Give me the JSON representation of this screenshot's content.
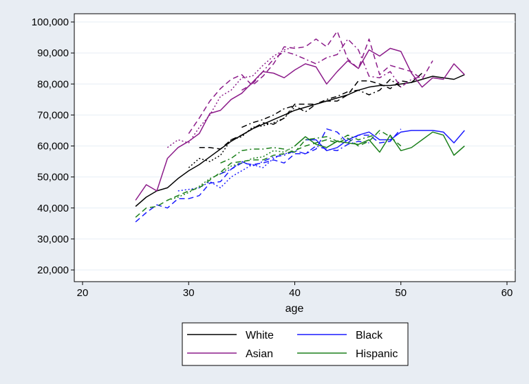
{
  "chart_data": {
    "type": "line",
    "xlabel": "age",
    "ylabel": "",
    "xlim": [
      18,
      61
    ],
    "ylim": [
      18000,
      102000
    ],
    "x_ticks": [
      20,
      30,
      40,
      50,
      60
    ],
    "y_ticks": [
      20000,
      30000,
      40000,
      50000,
      60000,
      70000,
      80000,
      90000,
      100000
    ],
    "y_tick_labels": [
      "20,000",
      "30,000",
      "40,000",
      "50,000",
      "60,000",
      "70,000",
      "80,000",
      "90,000",
      "100,000"
    ],
    "x_tick_labels": [
      "20",
      "30",
      "40",
      "50",
      "60"
    ],
    "grid": "horizontal",
    "legend_position": "bottom",
    "legend": [
      {
        "label": "White",
        "color": "#000000"
      },
      {
        "label": "Black",
        "color": "#1a1aff"
      },
      {
        "label": "Asian",
        "color": "#8b1a89"
      },
      {
        "label": "Hispanic",
        "color": "#1a7f1a"
      }
    ],
    "series": [
      {
        "group": "White",
        "color": "#000000",
        "dash": "solid",
        "x": [
          25,
          26,
          27,
          28,
          29,
          30,
          31,
          32,
          33,
          34,
          35,
          36,
          37,
          38,
          39,
          40,
          41,
          42,
          43,
          44,
          45,
          46,
          47,
          48,
          49,
          50,
          51,
          52,
          53,
          54,
          55,
          56
        ],
        "y": [
          40500,
          43500,
          45500,
          46500,
          49500,
          52000,
          54000,
          56500,
          59000,
          61500,
          63500,
          65500,
          67000,
          68500,
          70000,
          71500,
          72500,
          73500,
          74500,
          75500,
          76500,
          78000,
          79000,
          79500,
          79500,
          80000,
          80500,
          81500,
          82500,
          82000,
          81500,
          83000
        ]
      },
      {
        "group": "White",
        "color": "#000000",
        "dash": "dash",
        "x": [
          31,
          32,
          33,
          34,
          35,
          36,
          37,
          38,
          39,
          40,
          41,
          42,
          43,
          44,
          45,
          46,
          47,
          48,
          49,
          50,
          51,
          52
        ],
        "y": [
          59500,
          59500,
          59000,
          62000,
          63500,
          65500,
          67500,
          67000,
          69000,
          73500,
          73500,
          73500,
          74500,
          74500,
          76500,
          81000,
          81000,
          80000,
          78500,
          81000,
          80500,
          83500
        ]
      },
      {
        "group": "White",
        "color": "#000000",
        "dash": "dashdot",
        "x": [
          35,
          36,
          37,
          38,
          39,
          40,
          41,
          42,
          43,
          44,
          45,
          46,
          47,
          48,
          49,
          50
        ],
        "y": [
          66000,
          67500,
          68500,
          70000,
          72000,
          73000,
          71000,
          73500,
          75000,
          76000,
          77500,
          78000,
          76500,
          78000,
          81500,
          79000
        ]
      },
      {
        "group": "White",
        "color": "#000000",
        "dash": "dot",
        "x": [
          30,
          31,
          32,
          33,
          34,
          35,
          36,
          37,
          38,
          39,
          40
        ],
        "y": [
          53000,
          56000,
          55000,
          57000,
          62000,
          63000,
          66000,
          66500,
          67500,
          69000,
          72500
        ]
      },
      {
        "group": "Asian",
        "color": "#8b1a89",
        "dash": "solid",
        "x": [
          25,
          26,
          27,
          28,
          29,
          30,
          31,
          32,
          33,
          34,
          35,
          36,
          37,
          38,
          39,
          40,
          41,
          42,
          43,
          44,
          45,
          46,
          47,
          48,
          49,
          50,
          51,
          52,
          53,
          54,
          55,
          56
        ],
        "y": [
          42500,
          47500,
          45500,
          56000,
          59500,
          61500,
          64000,
          70500,
          71500,
          75000,
          77000,
          80500,
          84000,
          83500,
          82000,
          84500,
          86500,
          85500,
          80000,
          84000,
          87500,
          85000,
          91000,
          89000,
          91500,
          90500,
          83500,
          79000,
          82000,
          81500,
          86500,
          83000
        ]
      },
      {
        "group": "Asian",
        "color": "#8b1a89",
        "dash": "dash",
        "x": [
          30,
          31,
          32,
          33,
          34,
          35,
          36,
          37,
          38,
          39,
          40,
          41,
          42,
          43,
          44,
          45,
          46,
          47,
          48,
          49,
          50,
          51,
          52,
          53
        ],
        "y": [
          64000,
          69000,
          74500,
          78500,
          81500,
          83000,
          79500,
          82500,
          86500,
          92000,
          91500,
          92000,
          94500,
          92000,
          97000,
          88000,
          85000,
          94500,
          83000,
          86000,
          85000,
          84000,
          81500,
          87500
        ]
      },
      {
        "group": "Asian",
        "color": "#8b1a89",
        "dash": "dashdot",
        "x": [
          35,
          36,
          37,
          38,
          39,
          40,
          41,
          42,
          43,
          44,
          45,
          46,
          47,
          48,
          49,
          50,
          51,
          52
        ],
        "y": [
          78000,
          80000,
          84000,
          88000,
          90500,
          89500,
          88000,
          86500,
          88500,
          89500,
          94500,
          91000,
          82500,
          82000,
          84000,
          79000,
          81500,
          82500
        ]
      },
      {
        "group": "Asian",
        "color": "#8b1a89",
        "dash": "dot",
        "x": [
          28,
          29,
          30,
          31,
          32,
          33,
          34,
          35,
          36,
          37,
          38,
          39,
          40
        ],
        "y": [
          59500,
          62000,
          61000,
          66000,
          70000,
          76000,
          78000,
          82000,
          82500,
          86000,
          89000,
          91000,
          92000
        ]
      },
      {
        "group": "Black",
        "color": "#1a1aff",
        "dash": "solid",
        "x": [
          41,
          42,
          43,
          44,
          45,
          46,
          47,
          48,
          49,
          50,
          51,
          52,
          53,
          54,
          55,
          56
        ],
        "y": [
          62000,
          62000,
          58500,
          59500,
          62000,
          63500,
          64500,
          62000,
          62000,
          64500,
          65000,
          65000,
          65000,
          64500,
          61000,
          65000
        ]
      },
      {
        "group": "Black",
        "color": "#1a1aff",
        "dash": "dash",
        "x": [
          25,
          26,
          27,
          28,
          29,
          30,
          31,
          32,
          33,
          34,
          35,
          36,
          37,
          38,
          39,
          40,
          41,
          42,
          43,
          44,
          45,
          46,
          47,
          48,
          49,
          50
        ],
        "y": [
          35500,
          38500,
          41000,
          40000,
          43000,
          43000,
          44000,
          48000,
          48500,
          52500,
          54500,
          54000,
          54500,
          55500,
          54500,
          57500,
          57500,
          59000,
          65500,
          64500,
          61000,
          63500,
          63500,
          61000,
          61500,
          65500
        ]
      },
      {
        "group": "Black",
        "color": "#1a1aff",
        "dash": "dashdot",
        "x": [
          33,
          34,
          35,
          36,
          37,
          38,
          39,
          40,
          41,
          42,
          43,
          44,
          45,
          46,
          47
        ],
        "y": [
          51000,
          52500,
          55000,
          53500,
          55000,
          56500,
          57000,
          58500,
          57500,
          60000,
          59000,
          58500,
          60500,
          61500,
          61000
        ]
      },
      {
        "group": "Black",
        "color": "#1a1aff",
        "dash": "dot",
        "x": [
          29,
          30,
          31,
          32,
          33,
          34,
          35,
          36,
          37,
          38,
          39,
          40
        ],
        "y": [
          45500,
          46000,
          46500,
          48500,
          46500,
          50000,
          52000,
          54000,
          53000,
          56000,
          57500,
          58000
        ]
      },
      {
        "group": "Hispanic",
        "color": "#1a7f1a",
        "dash": "solid",
        "x": [
          40,
          41,
          42,
          43,
          44,
          45,
          46,
          47,
          48,
          49,
          50,
          51,
          52,
          53,
          54,
          55,
          56
        ],
        "y": [
          60000,
          63000,
          60500,
          59500,
          61500,
          61000,
          60500,
          62000,
          58000,
          63500,
          58500,
          59500,
          62000,
          64500,
          63500,
          57000,
          60000
        ]
      },
      {
        "group": "Hispanic",
        "color": "#1a7f1a",
        "dash": "dash",
        "x": [
          25,
          26,
          27,
          28,
          29,
          30,
          31,
          32,
          33,
          34,
          35,
          36,
          37,
          38,
          39,
          40,
          41,
          42,
          43,
          44,
          45,
          46,
          47,
          48,
          49,
          50
        ],
        "y": [
          37000,
          40000,
          40500,
          42500,
          44000,
          45500,
          46500,
          49000,
          51500,
          54500,
          55000,
          55500,
          55500,
          57000,
          57500,
          58500,
          60000,
          61000,
          62000,
          61000,
          62500,
          60000,
          61500,
          65000,
          63000,
          60000
        ]
      },
      {
        "group": "Hispanic",
        "color": "#1a7f1a",
        "dash": "dashdot",
        "x": [
          33,
          34,
          35,
          36,
          37,
          38,
          39,
          40,
          41,
          42,
          43,
          44,
          45,
          46,
          47,
          48
        ],
        "y": [
          54500,
          56000,
          58500,
          59000,
          59000,
          59500,
          59000,
          58000,
          62000,
          62500,
          63000,
          61500,
          63500,
          62000,
          63000,
          64000
        ]
      },
      {
        "group": "Hispanic",
        "color": "#1a7f1a",
        "dash": "dot",
        "x": [
          28,
          29,
          30,
          31,
          32,
          33,
          34,
          35,
          36,
          37,
          38,
          39,
          40
        ],
        "y": [
          42500,
          43500,
          45000,
          47000,
          49500,
          51000,
          53500,
          54500,
          56000,
          56500,
          58500,
          58000,
          60000
        ]
      }
    ]
  }
}
